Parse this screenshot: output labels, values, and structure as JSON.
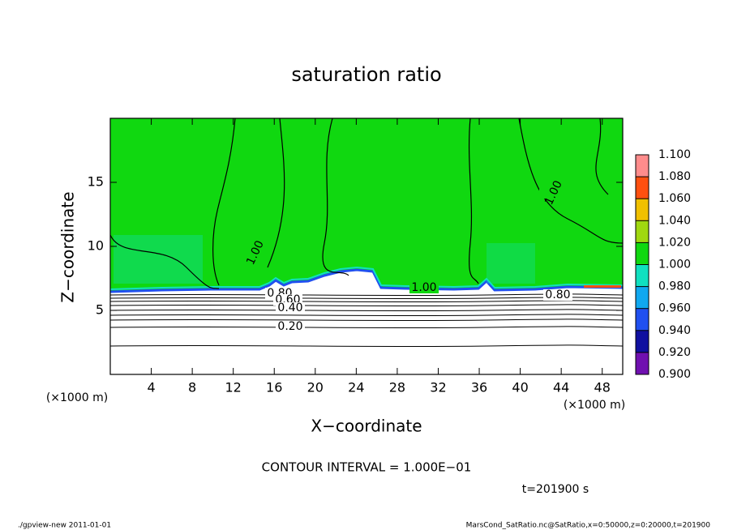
{
  "chart_data": {
    "type": "contour",
    "title": "saturation ratio",
    "x_label": "X−coordinate",
    "y_label": "Z−coordinate",
    "x_unit_left": "(×1000 m)",
    "x_unit_right": "(×1000 m)",
    "xlim": [
      0,
      50
    ],
    "ylim": [
      0,
      20
    ],
    "xticks": [
      4,
      8,
      12,
      16,
      20,
      24,
      28,
      32,
      36,
      40,
      44,
      48
    ],
    "yticks": [
      5,
      10,
      15
    ],
    "contour_labels": [
      "1.00",
      "1.00",
      "1.00",
      "0.80",
      "0.80",
      "0.60",
      "0.40",
      "0.20"
    ],
    "contour_interval": "CONTOUR INTERVAL = 1.000E−01",
    "time_label": "t=201900 s",
    "colorbar": {
      "levels": [
        {
          "value": 0.9,
          "label": "0.900"
        },
        {
          "value": 0.92,
          "label": "0.920"
        },
        {
          "value": 0.94,
          "label": "0.940"
        },
        {
          "value": 0.96,
          "label": "0.960"
        },
        {
          "value": 0.98,
          "label": "0.980"
        },
        {
          "value": 1.0,
          "label": "1.000"
        },
        {
          "value": 1.02,
          "label": "1.020"
        },
        {
          "value": 1.04,
          "label": "1.040"
        },
        {
          "value": 1.06,
          "label": "1.060"
        },
        {
          "value": 1.08,
          "label": "1.080"
        },
        {
          "value": 1.1,
          "label": "1.100"
        }
      ],
      "colors": [
        "#7010b0",
        "#1010a0",
        "#2050f0",
        "#10a8f0",
        "#10e0c0",
        "#10d810",
        "#a0d810",
        "#f0c000",
        "#ff5010",
        "#ff8c8c"
      ]
    },
    "footer_left": "./gpview-new   2011-01-01",
    "footer_right": "MarsCond_SatRatio.nc@SatRatio,x=0:50000,z=0:20000,t=201900"
  }
}
